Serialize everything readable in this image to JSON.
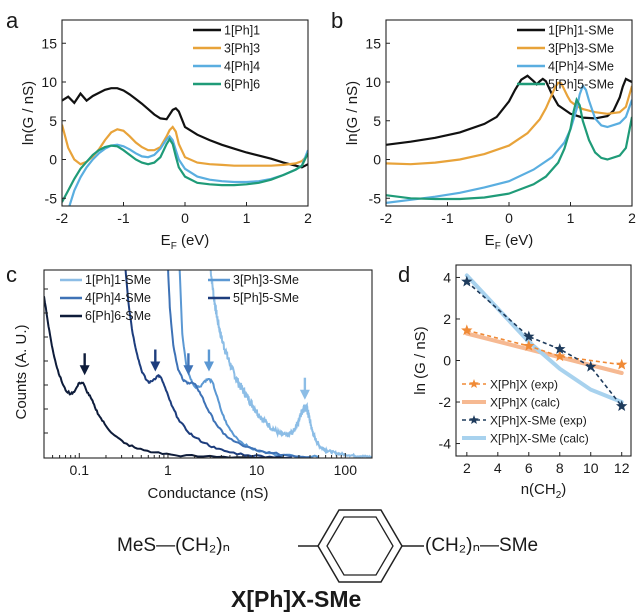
{
  "colors": {
    "black": "#111111",
    "orange": "#e8a33a",
    "blue": "#5aaee0",
    "green": "#1f9b78",
    "c_light": "#8cbde6",
    "c_mid1": "#5b98d3",
    "c_mid2": "#3e72b6",
    "c_dark1": "#1d3d7d",
    "c_dark2": "#0e1c3a",
    "d_orange": "#f08a36",
    "d_peach": "#f6b992",
    "d_navy": "#1e3b5c",
    "d_lightblue": "#a8d2ee"
  },
  "panels": {
    "a": {
      "label": "a"
    },
    "b": {
      "label": "b"
    },
    "c": {
      "label": "c"
    },
    "d": {
      "label": "d"
    }
  },
  "structure": {
    "left": "MeS—(CH₂)ₙ",
    "right": "(CH₂)ₙ—SMe",
    "name": "X[Ph]X-SMe"
  },
  "chart_data": [
    {
      "id": "a",
      "type": "line",
      "ylabel": "ln(G / nS)",
      "xlabel_main": "E",
      "xlabel_sub": "F",
      "xlabel_unit": " (eV)",
      "xlim": [
        -2,
        2
      ],
      "ylim": [
        -6,
        18
      ],
      "xticks": [
        "-2",
        "-1",
        "0",
        "1",
        "2"
      ],
      "yticks": [
        "-5",
        "0",
        "5",
        "10",
        "15"
      ],
      "legend_position": "top-right",
      "series": [
        {
          "name": "1[Ph]1",
          "color": "black",
          "x": [
            -2,
            -1.9,
            -1.8,
            -1.7,
            -1.6,
            -1.5,
            -1.4,
            -1.3,
            -1.2,
            -1.1,
            -1.0,
            -0.9,
            -0.8,
            -0.7,
            -0.6,
            -0.5,
            -0.4,
            -0.3,
            -0.2,
            -0.15,
            -0.1,
            0,
            0.2,
            0.4,
            0.6,
            0.8,
            1.0,
            1.2,
            1.4,
            1.6,
            1.8,
            1.9,
            2.0
          ],
          "y": [
            7.6,
            8.1,
            7.3,
            8.5,
            7.6,
            8.2,
            8.6,
            9.0,
            9.2,
            9.2,
            8.9,
            8.4,
            7.8,
            7.2,
            6.5,
            5.8,
            5.3,
            5.2,
            6.4,
            6.6,
            6.2,
            4.2,
            3.2,
            2.5,
            1.9,
            1.4,
            0.9,
            0.5,
            0.1,
            -0.4,
            -0.8,
            -1.0,
            -0.6
          ]
        },
        {
          "name": "3[Ph]3",
          "color": "orange",
          "x": [
            -2,
            -1.9,
            -1.8,
            -1.7,
            -1.6,
            -1.5,
            -1.4,
            -1.3,
            -1.2,
            -1.1,
            -1.0,
            -0.9,
            -0.8,
            -0.7,
            -0.6,
            -0.5,
            -0.4,
            -0.3,
            -0.25,
            -0.2,
            -0.15,
            -0.1,
            0,
            0.2,
            0.4,
            0.6,
            0.8,
            1.0,
            1.2,
            1.4,
            1.6,
            1.8,
            1.9,
            2.0
          ],
          "y": [
            4.5,
            1.5,
            0.0,
            -0.6,
            -0.3,
            0.4,
            1.3,
            2.5,
            3.5,
            3.9,
            3.7,
            3.0,
            2.2,
            1.6,
            1.2,
            1.2,
            1.6,
            3.0,
            3.8,
            4.2,
            3.6,
            2.0,
            0.3,
            -0.4,
            -0.6,
            -0.7,
            -0.8,
            -0.8,
            -0.8,
            -0.8,
            -0.7,
            -0.5,
            -0.2,
            0.6
          ]
        },
        {
          "name": "4[Ph]4",
          "color": "blue",
          "x": [
            -2,
            -1.9,
            -1.8,
            -1.7,
            -1.6,
            -1.5,
            -1.4,
            -1.3,
            -1.2,
            -1.1,
            -1.0,
            -0.9,
            -0.8,
            -0.7,
            -0.6,
            -0.5,
            -0.4,
            -0.3,
            -0.25,
            -0.2,
            -0.15,
            -0.1,
            0,
            0.2,
            0.4,
            0.6,
            0.8,
            1.0,
            1.2,
            1.4,
            1.6,
            1.8,
            1.9,
            2.0
          ],
          "y": [
            -8,
            -6.5,
            -4.0,
            -2.3,
            -1.0,
            0.0,
            0.8,
            1.4,
            1.8,
            1.9,
            1.7,
            1.3,
            0.8,
            0.4,
            0.3,
            0.6,
            1.4,
            2.6,
            3.0,
            2.5,
            1.2,
            0.0,
            -1.2,
            -2.2,
            -2.6,
            -2.8,
            -2.9,
            -2.9,
            -2.8,
            -2.5,
            -2.0,
            -1.3,
            -0.8,
            1.2
          ]
        },
        {
          "name": "6[Ph]6",
          "color": "green",
          "x": [
            -2,
            -1.9,
            -1.8,
            -1.7,
            -1.6,
            -1.5,
            -1.4,
            -1.3,
            -1.2,
            -1.1,
            -1.0,
            -0.9,
            -0.8,
            -0.7,
            -0.6,
            -0.5,
            -0.4,
            -0.3,
            -0.25,
            -0.2,
            -0.15,
            -0.1,
            0,
            0.2,
            0.4,
            0.6,
            0.8,
            1.0,
            1.2,
            1.4,
            1.6,
            1.8,
            1.9,
            2.0
          ],
          "y": [
            -5.5,
            -4.0,
            -2.5,
            -1.2,
            -0.3,
            0.6,
            1.2,
            1.6,
            1.8,
            1.7,
            1.2,
            0.6,
            0.0,
            -0.4,
            -0.6,
            -0.4,
            0.3,
            2.0,
            2.6,
            2.0,
            0.4,
            -1.0,
            -2.2,
            -3.0,
            -3.2,
            -3.3,
            -3.3,
            -3.2,
            -3.0,
            -2.6,
            -2.0,
            -1.3,
            -0.8,
            0.8
          ]
        }
      ]
    },
    {
      "id": "b",
      "type": "line",
      "ylabel": "ln(G / nS)",
      "xlabel_main": "E",
      "xlabel_sub": "F",
      "xlabel_unit": " (eV)",
      "xlim": [
        -2,
        2
      ],
      "ylim": [
        -6,
        18
      ],
      "xticks": [
        "-2",
        "-1",
        "0",
        "1",
        "2"
      ],
      "yticks": [
        "-5",
        "0",
        "5",
        "10",
        "15"
      ],
      "legend_position": "top-right",
      "series": [
        {
          "name": "1[Ph]1-SMe",
          "color": "black",
          "x": [
            -2,
            -1.6,
            -1.2,
            -0.8,
            -0.4,
            -0.2,
            0,
            0.1,
            0.2,
            0.3,
            0.4,
            0.45,
            0.5,
            0.55,
            0.6,
            0.7,
            0.8,
            1.0,
            1.2,
            1.4,
            1.6,
            1.7,
            1.8,
            1.85,
            1.9,
            1.95,
            2.0
          ],
          "y": [
            1.9,
            2.3,
            2.8,
            3.5,
            4.6,
            5.5,
            7.5,
            9.0,
            10.3,
            10.8,
            10.1,
            9.7,
            10.1,
            10.4,
            10.1,
            8.4,
            7.0,
            5.9,
            5.4,
            5.3,
            5.6,
            6.3,
            8.0,
            9.4,
            10.4,
            10.2,
            10.0
          ]
        },
        {
          "name": "3[Ph]3-SMe",
          "color": "orange",
          "x": [
            -2,
            -1.6,
            -1.2,
            -0.8,
            -0.4,
            0,
            0.3,
            0.5,
            0.6,
            0.7,
            0.75,
            0.8,
            0.85,
            0.9,
            0.95,
            1.0,
            1.1,
            1.2,
            1.4,
            1.6,
            1.8,
            1.9,
            2.0
          ],
          "y": [
            -0.5,
            -0.6,
            -0.4,
            0.0,
            0.7,
            1.8,
            3.4,
            5.2,
            6.6,
            8.4,
            9.3,
            9.9,
            9.8,
            9.0,
            8.2,
            7.5,
            6.9,
            6.5,
            6.1,
            5.9,
            6.1,
            6.8,
            9.5
          ]
        },
        {
          "name": "4[Ph]4-SMe",
          "color": "blue",
          "x": [
            -2,
            -1.6,
            -1.2,
            -0.8,
            -0.4,
            0,
            0.4,
            0.7,
            0.9,
            1.0,
            1.1,
            1.15,
            1.2,
            1.25,
            1.3,
            1.4,
            1.5,
            1.6,
            1.8,
            1.9,
            2.0
          ],
          "y": [
            -5.6,
            -5.2,
            -4.8,
            -4.3,
            -3.6,
            -2.8,
            -1.3,
            0.3,
            2.2,
            3.9,
            6.5,
            8.4,
            9.5,
            9.0,
            7.6,
            5.3,
            4.4,
            4.2,
            4.7,
            5.5,
            7.7
          ]
        },
        {
          "name": "5[Ph]5-SMe",
          "color": "green",
          "x": [
            -2,
            -1.6,
            -1.2,
            -0.8,
            -0.4,
            0,
            0.4,
            0.6,
            0.8,
            0.9,
            1.0,
            1.05,
            1.1,
            1.15,
            1.2,
            1.3,
            1.4,
            1.5,
            1.6,
            1.8,
            1.9,
            2.0
          ],
          "y": [
            -4.6,
            -5.0,
            -5.1,
            -5.1,
            -4.9,
            -4.4,
            -3.2,
            -2.2,
            -0.4,
            1.4,
            4.0,
            6.2,
            7.7,
            7.0,
            5.0,
            2.5,
            0.9,
            0.2,
            0.0,
            0.5,
            1.5,
            5.5
          ]
        }
      ]
    },
    {
      "id": "c",
      "type": "line",
      "ylabel": "Counts (A. U.)",
      "xlabel": "Conductance (nS)",
      "xscale": "log",
      "xlim": [
        0.04,
        200
      ],
      "xticks": [
        "0.1",
        "1",
        "10",
        "100"
      ],
      "legend_position": "top",
      "series": [
        {
          "name": "1[Ph]1-SMe",
          "color": "c_light",
          "noisy": true,
          "x": [
            3.0,
            3.3,
            3.6,
            4.0,
            4.6,
            5.3,
            6.2,
            7.5,
            9,
            11,
            14,
            18,
            22,
            26,
            30,
            33,
            35,
            37,
            39,
            42,
            46,
            52,
            62,
            80,
            110,
            150,
            200
          ],
          "y": [
            1.02,
            0.85,
            0.74,
            0.64,
            0.55,
            0.47,
            0.4,
            0.34,
            0.28,
            0.22,
            0.17,
            0.13,
            0.12,
            0.14,
            0.2,
            0.26,
            0.27,
            0.26,
            0.22,
            0.15,
            0.1,
            0.06,
            0.04,
            0.025,
            0.015,
            0.01,
            0.005
          ]
        },
        {
          "name": "3[Ph]3-SMe",
          "color": "c_mid1",
          "noisy": false,
          "x": [
            1.35,
            1.45,
            1.6,
            1.8,
            2.0,
            2.3,
            2.6,
            2.9,
            3.2,
            3.5,
            4.0,
            4.6,
            5.4,
            6.5,
            8,
            10,
            14,
            20,
            30,
            50
          ],
          "y": [
            1.02,
            0.66,
            0.5,
            0.42,
            0.38,
            0.38,
            0.41,
            0.42,
            0.4,
            0.34,
            0.25,
            0.18,
            0.13,
            0.09,
            0.06,
            0.04,
            0.025,
            0.015,
            0.01,
            0.005
          ]
        },
        {
          "name": "4[Ph]4-SMe",
          "color": "c_mid2",
          "noisy": false,
          "x": [
            1.0,
            1.05,
            1.15,
            1.3,
            1.5,
            1.7,
            1.9,
            2.1,
            2.4,
            2.8,
            3.4,
            4.2,
            5.5,
            7.5,
            10,
            15,
            25,
            40
          ],
          "y": [
            1.02,
            0.8,
            0.6,
            0.47,
            0.41,
            0.4,
            0.4,
            0.38,
            0.33,
            0.26,
            0.19,
            0.13,
            0.09,
            0.06,
            0.04,
            0.025,
            0.012,
            0.005
          ]
        },
        {
          "name": "5[Ph]5-SMe",
          "color": "c_dark1",
          "noisy": false,
          "x": [
            0.33,
            0.36,
            0.4,
            0.45,
            0.5,
            0.56,
            0.62,
            0.7,
            0.78,
            0.85,
            0.95,
            1.1,
            1.3,
            1.6,
            2.0,
            2.6,
            3.5,
            5,
            8,
            14,
            25
          ],
          "y": [
            1.02,
            0.82,
            0.66,
            0.55,
            0.47,
            0.42,
            0.4,
            0.42,
            0.44,
            0.42,
            0.36,
            0.28,
            0.21,
            0.15,
            0.11,
            0.08,
            0.05,
            0.03,
            0.015,
            0.007,
            0.003
          ]
        },
        {
          "name": "6[Ph]6-SMe",
          "color": "c_dark2",
          "noisy": false,
          "x": [
            0.04,
            0.045,
            0.05,
            0.056,
            0.063,
            0.07,
            0.08,
            0.09,
            0.1,
            0.11,
            0.12,
            0.135,
            0.15,
            0.17,
            0.2,
            0.25,
            0.32,
            0.45,
            0.7,
            1.2,
            2.5,
            6,
            20
          ],
          "y": [
            0.86,
            0.7,
            0.58,
            0.48,
            0.41,
            0.36,
            0.34,
            0.36,
            0.4,
            0.4,
            0.36,
            0.32,
            0.27,
            0.22,
            0.17,
            0.12,
            0.08,
            0.05,
            0.03,
            0.015,
            0.008,
            0.004,
            0.002
          ]
        }
      ],
      "arrows": [
        {
          "x": 0.115,
          "y": 0.44,
          "color": "c_dark2"
        },
        {
          "x": 0.72,
          "y": 0.46,
          "color": "c_dark1"
        },
        {
          "x": 1.7,
          "y": 0.44,
          "color": "c_mid2"
        },
        {
          "x": 2.9,
          "y": 0.46,
          "color": "c_mid1"
        },
        {
          "x": 35,
          "y": 0.31,
          "color": "c_light"
        }
      ]
    },
    {
      "id": "d",
      "type": "line",
      "xlabel": "n(CH₂)",
      "ylabel": "ln (G / nS)",
      "xlim": [
        1.3,
        12.6
      ],
      "ylim": [
        -4.6,
        4.6
      ],
      "xticks": [
        "2",
        "4",
        "6",
        "8",
        "10",
        "12"
      ],
      "yticks": [
        "-4",
        "-2",
        "0",
        "2",
        "4"
      ],
      "legend_position": "bottom-left",
      "series": [
        {
          "name": "X[Ph]X (exp)",
          "color": "d_orange",
          "style": "dash-star",
          "x": [
            2,
            6,
            8,
            12
          ],
          "y": [
            1.45,
            0.7,
            0.2,
            -0.2
          ]
        },
        {
          "name": "X[Ph]X (calc)",
          "color": "d_peach",
          "style": "solid-thick",
          "x": [
            2,
            12
          ],
          "y": [
            1.3,
            -0.6
          ]
        },
        {
          "name": "X[Ph]X-SMe (exp)",
          "color": "d_navy",
          "style": "dash-star",
          "x": [
            2,
            6,
            8,
            10,
            12
          ],
          "y": [
            3.8,
            1.15,
            0.55,
            -0.3,
            -2.2
          ]
        },
        {
          "name": "X[Ph]X-SMe (calc)",
          "color": "d_lightblue",
          "style": "solid-thick",
          "x": [
            2,
            4,
            6,
            8,
            10,
            12
          ],
          "y": [
            4.1,
            2.5,
            0.9,
            -0.4,
            -1.4,
            -2.0
          ]
        }
      ]
    }
  ]
}
